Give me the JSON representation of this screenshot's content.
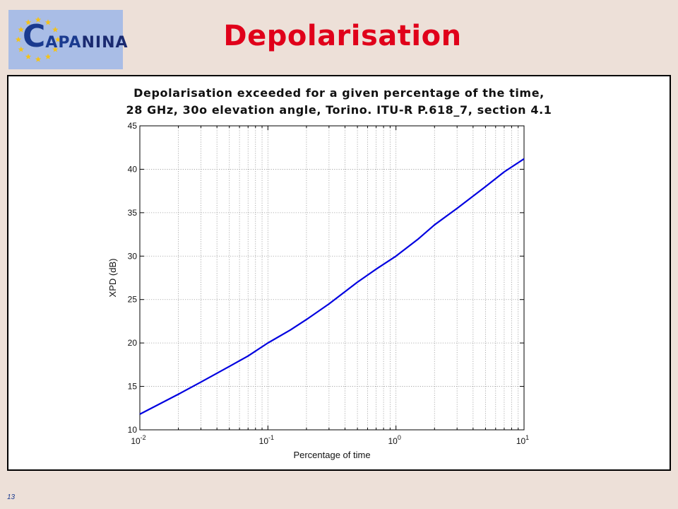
{
  "logo": {
    "big_letter": "C",
    "middle": "APA",
    "tail": "NINA",
    "star_color": "#f2c21b",
    "text_color": "#1a3a8f",
    "background_color": "#a9bde6"
  },
  "page": {
    "title": "Depolarisation",
    "title_color": "#e0001a",
    "slide_number": "13"
  },
  "chart_data": {
    "type": "line",
    "title_line1": "Depolarisation exceeded for a given percentage of the time,",
    "title_line2": "28 GHz, 30o elevation angle, Torino. ITU-R P.618_7, section 4.1",
    "xlabel": "Percentage of time",
    "ylabel": "XPD (dB)",
    "xscale": "log",
    "xlim": [
      0.01,
      10
    ],
    "ylim": [
      10,
      45
    ],
    "grid": true,
    "x_ticks": [
      {
        "base": "10",
        "exp": "-2"
      },
      {
        "base": "10",
        "exp": "-1"
      },
      {
        "base": "10",
        "exp": "0"
      },
      {
        "base": "10",
        "exp": "1"
      }
    ],
    "y_ticks": [
      "10",
      "15",
      "20",
      "25",
      "30",
      "35",
      "40",
      "45"
    ],
    "series": [
      {
        "color": "#0000e0",
        "x": [
          0.01,
          0.02,
          0.03,
          0.05,
          0.07,
          0.1,
          0.15,
          0.2,
          0.3,
          0.5,
          0.7,
          1,
          1.5,
          2,
          3,
          5,
          7,
          10
        ],
        "y": [
          11.8,
          14.1,
          15.5,
          17.3,
          18.5,
          20.0,
          21.5,
          22.7,
          24.5,
          27.0,
          28.5,
          30.0,
          32.0,
          33.6,
          35.5,
          38.0,
          39.7,
          41.2
        ]
      }
    ]
  }
}
